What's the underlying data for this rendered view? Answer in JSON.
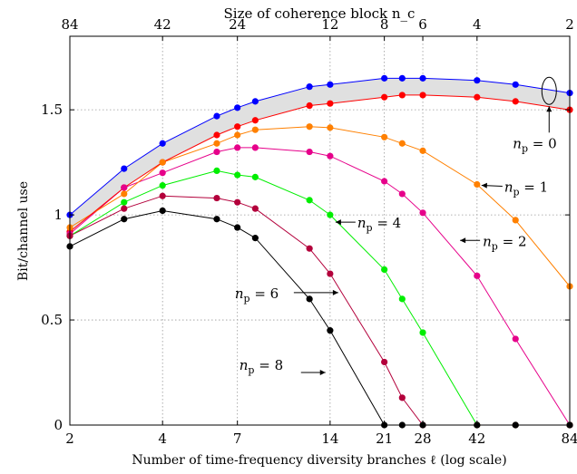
{
  "chart_data": {
    "type": "line",
    "title": "",
    "xlabel": "Number of time-frequency diversity branches ℓ (log scale)",
    "ylabel": "Bit/channel use",
    "top_xlabel": "Size of coherence block n_c",
    "xscale": "log",
    "xlim": [
      2,
      84
    ],
    "ylim": [
      0,
      1.85
    ],
    "grid": true,
    "x_ticks": [
      2,
      4,
      7,
      14,
      21,
      28,
      42,
      84
    ],
    "x_tick_labels": [
      "2",
      "4",
      "7",
      "14",
      "21",
      "28",
      "42",
      "84"
    ],
    "top_ticks_at_l": [
      2,
      4,
      7,
      14,
      21,
      28,
      42,
      84
    ],
    "top_tick_labels": [
      "84",
      "42",
      "24",
      "12",
      "8",
      "6",
      "4",
      "2"
    ],
    "y_ticks": [
      0,
      0.5,
      1,
      1.5
    ],
    "y_tick_labels": [
      "0",
      "0.5",
      "1",
      "1.5"
    ],
    "x": [
      2,
      3,
      4,
      6,
      7,
      8,
      12,
      14,
      21,
      24,
      28,
      42,
      56,
      84
    ],
    "series": [
      {
        "name": "n_p = 0 (upper)",
        "color": "#0000ff",
        "values": [
          1.0,
          1.22,
          1.34,
          1.47,
          1.51,
          1.54,
          1.61,
          1.62,
          1.65,
          1.65,
          1.65,
          1.64,
          1.62,
          1.58
        ]
      },
      {
        "name": "n_p = 0 (lower)",
        "color": "#ff0000",
        "values": [
          0.92,
          1.13,
          1.25,
          1.38,
          1.42,
          1.45,
          1.52,
          1.53,
          1.56,
          1.57,
          1.57,
          1.56,
          1.54,
          1.5
        ]
      },
      {
        "name": "n_p = 1",
        "color": "#ff8000",
        "values": [
          0.94,
          1.1,
          1.25,
          1.34,
          1.38,
          1.405,
          1.42,
          1.415,
          1.37,
          1.34,
          1.305,
          1.145,
          0.975,
          0.66
        ]
      },
      {
        "name": "n_p = 2",
        "color": "#e6008a",
        "values": [
          0.91,
          1.13,
          1.2,
          1.3,
          1.32,
          1.32,
          1.3,
          1.28,
          1.16,
          1.1,
          1.01,
          0.71,
          0.41,
          0
        ]
      },
      {
        "name": "n_p = 4",
        "color": "#00ee00",
        "values": [
          0.9,
          1.06,
          1.14,
          1.21,
          1.19,
          1.18,
          1.07,
          1.0,
          0.74,
          0.6,
          0.44,
          0,
          0,
          0
        ]
      },
      {
        "name": "n_p = 6",
        "color": "#b3003b",
        "values": [
          0.9,
          1.03,
          1.09,
          1.08,
          1.06,
          1.03,
          0.84,
          0.72,
          0.3,
          0.13,
          0,
          0,
          0,
          0
        ]
      },
      {
        "name": "n_p = 8",
        "color": "#000000",
        "values": [
          0.85,
          0.98,
          1.02,
          0.98,
          0.94,
          0.89,
          0.6,
          0.45,
          0,
          0,
          0,
          0,
          0,
          0
        ]
      }
    ],
    "band": {
      "between": [
        0,
        1
      ],
      "fill": "#e0e0e0"
    },
    "annotations": [
      {
        "label": "n_p = 0",
        "x": 72,
        "y": 1.59,
        "marker": "ellipse"
      },
      {
        "label": "n_p = 1",
        "x": 42,
        "y": 1.145
      },
      {
        "label": "n_p = 2",
        "x": 37,
        "y": 0.87
      },
      {
        "label": "n_p = 4",
        "x": 14,
        "y": 1.0
      },
      {
        "label": "n_p = 6",
        "x": 15.5,
        "y": 0.63
      },
      {
        "label": "n_p = 8",
        "x": 17.5,
        "y": 0.25
      }
    ]
  }
}
